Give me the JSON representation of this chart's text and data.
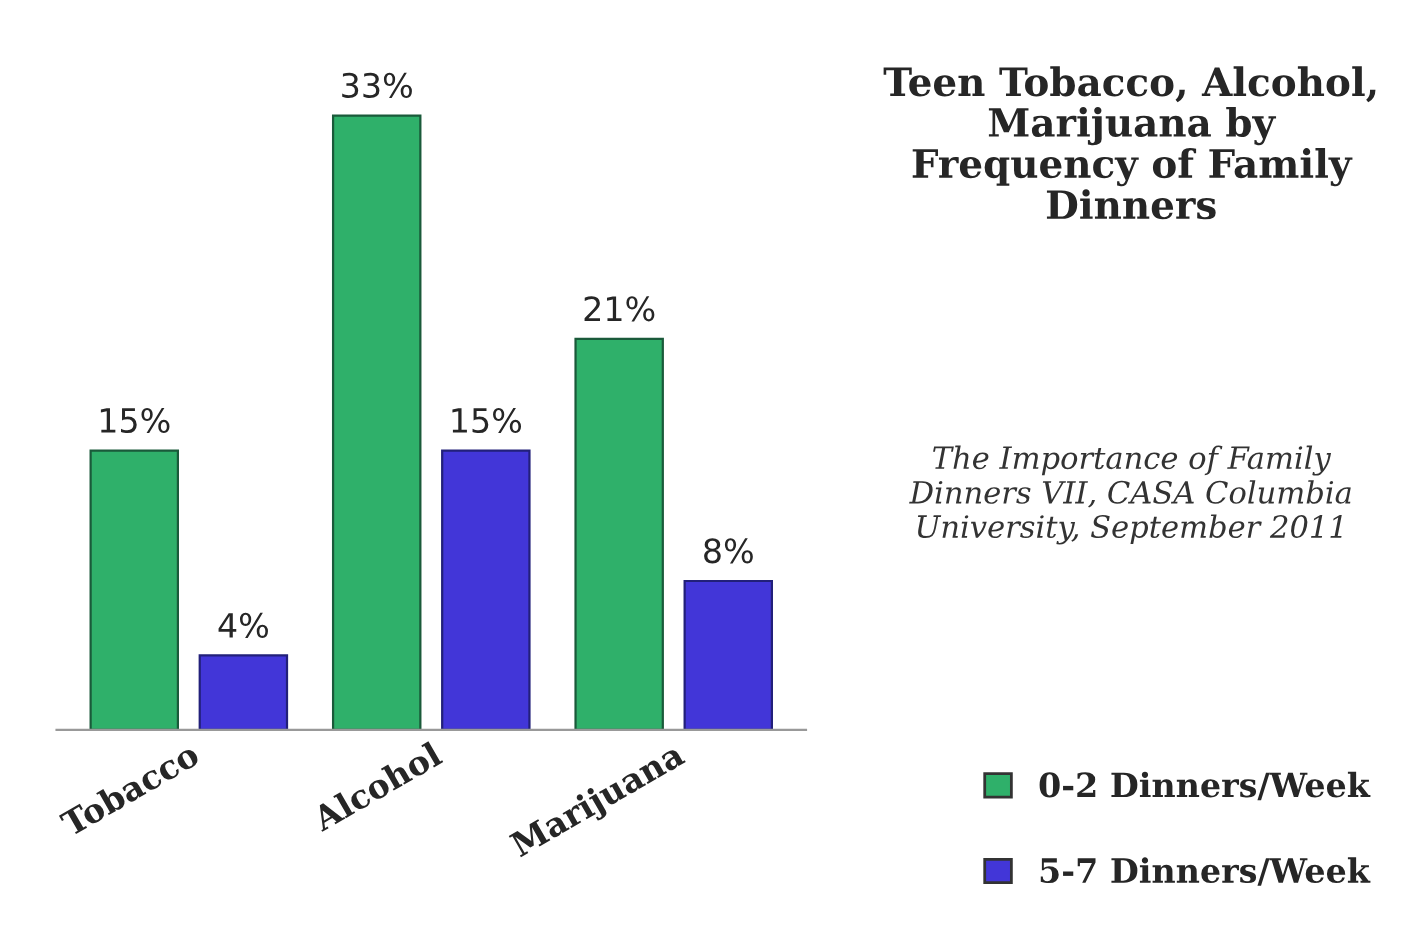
{
  "chart_data": {
    "type": "bar",
    "title": "Teen Tobacco, Alcohol, Marijuana by Frequency of Family Dinners",
    "annotations": [
      "The Importance of Family Dinners VII, CASA Columbia University, September 2011"
    ],
    "categories": [
      "Tobacco",
      "Alcohol",
      "Marijuana"
    ],
    "series": [
      {
        "name": "0-2 Dinners/Week",
        "color": "#2fb06a",
        "values": [
          15,
          33,
          21
        ],
        "value_labels": [
          "15%",
          "33%",
          "21%"
        ]
      },
      {
        "name": "5-7 Dinners/Week",
        "color": "#4236d8",
        "values": [
          4,
          15,
          8
        ],
        "value_labels": [
          "4%",
          "15%",
          "8%"
        ]
      }
    ],
    "tick_labels": "x",
    "grid": false,
    "legend": "bottom right"
  }
}
